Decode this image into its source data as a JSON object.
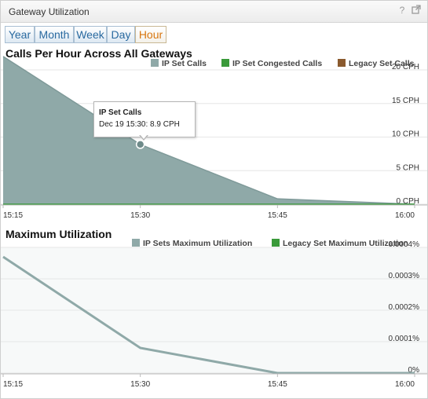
{
  "window": {
    "title": "Gateway Utilization",
    "help_icon": "?",
    "popout_icon": "popout-icon"
  },
  "tabs": [
    {
      "label": "Year",
      "active": false
    },
    {
      "label": "Month",
      "active": false
    },
    {
      "label": "Week",
      "active": false
    },
    {
      "label": "Day",
      "active": false
    },
    {
      "label": "Hour",
      "active": true
    }
  ],
  "charts": {
    "calls": {
      "title": "Calls Per Hour Across All Gateways"
    },
    "util": {
      "title": "Maximum Utilization"
    }
  },
  "tooltip": {
    "title": "IP Set Calls",
    "body": "Dec 19 15:30: 8.9 CPH"
  },
  "colors": {
    "ip_set": "#8fa9a8",
    "congested": "#3a9a3a",
    "legacy": "#8a5a2e",
    "util_line": "#8fa9a8"
  },
  "chart_data": [
    {
      "type": "area",
      "title": "Calls Per Hour Across All Gateways",
      "x": [
        "15:15",
        "15:30",
        "15:45",
        "16:00"
      ],
      "series": [
        {
          "name": "IP Set Calls",
          "values": [
            22,
            8.9,
            0.8,
            0
          ]
        },
        {
          "name": "IP Set Congested Calls",
          "values": [
            0,
            0,
            0,
            0
          ]
        },
        {
          "name": "Legacy Set Calls",
          "values": [
            0,
            0,
            0,
            0
          ]
        }
      ],
      "yticks": [
        "20 CPH",
        "15 CPH",
        "10 CPH",
        "5 CPH",
        "0 CPH"
      ],
      "ylim": [
        0,
        20
      ],
      "legend": "top-right",
      "grid": true
    },
    {
      "type": "area",
      "title": "Maximum Utilization",
      "x": [
        "15:15",
        "15:30",
        "15:45",
        "16:00"
      ],
      "series": [
        {
          "name": "IP Sets Maximum Utilization",
          "values": [
            0.00037,
            8e-05,
            0,
            0
          ]
        },
        {
          "name": "Legacy Set Maximum Utilization",
          "values": [
            0,
            0,
            0,
            0
          ]
        }
      ],
      "yticks": [
        "0.0004%",
        "0.0003%",
        "0.0002%",
        "0.0001%",
        "0%"
      ],
      "ylim": [
        0,
        0.0004
      ],
      "legend": "top-right",
      "grid": true
    }
  ]
}
